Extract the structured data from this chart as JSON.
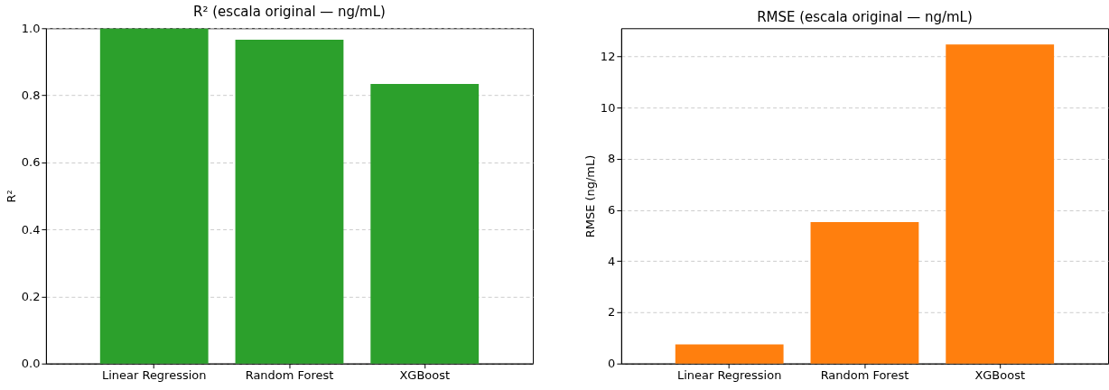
{
  "chart_data": [
    {
      "type": "bar",
      "title": "R² (escala original — ng/mL)",
      "ylabel": "R²",
      "categories": [
        "Linear Regression",
        "Random Forest",
        "XGBoost"
      ],
      "values": [
        0.999,
        0.966,
        0.834
      ],
      "color": "#2ca02c",
      "ylim": [
        0,
        1
      ],
      "yticks": [
        {
          "value": 0,
          "label": "0.0"
        },
        {
          "value": 0.2,
          "label": "0.2"
        },
        {
          "value": 0.4,
          "label": "0.4"
        },
        {
          "value": 0.6,
          "label": "0.6"
        },
        {
          "value": 0.8,
          "label": "0.8"
        },
        {
          "value": 1,
          "label": "1.0"
        }
      ],
      "grid": "y"
    },
    {
      "type": "bar",
      "title": "RMSE (escala original — ng/mL)",
      "ylabel": "RMSE (ng/mL)",
      "categories": [
        "Linear Regression",
        "Random Forest",
        "XGBoost"
      ],
      "values": [
        0.75,
        5.53,
        12.47
      ],
      "color": "#ff7f0e",
      "ylim": [
        0,
        13.1
      ],
      "yticks": [
        0,
        2,
        4,
        6,
        8,
        10,
        12
      ],
      "grid": "y"
    }
  ]
}
